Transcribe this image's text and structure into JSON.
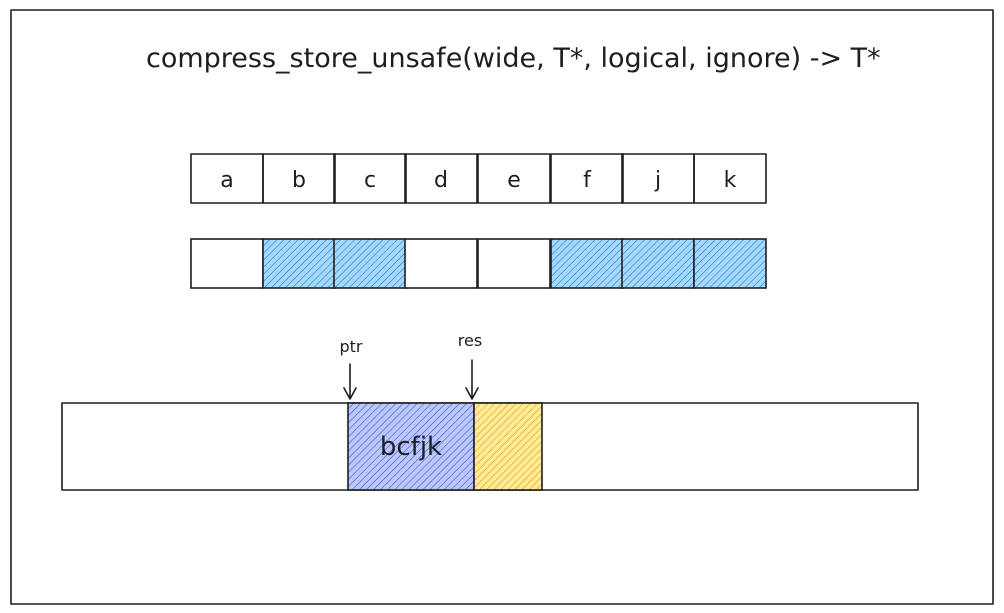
{
  "title": "compress_store_unsafe(wide, T*, logical, ignore) -> T*",
  "values": [
    "a",
    "b",
    "c",
    "d",
    "e",
    "f",
    "j",
    "k"
  ],
  "mask": [
    false,
    true,
    true,
    false,
    false,
    true,
    true,
    true
  ],
  "pointers": {
    "ptr_label": "ptr",
    "res_label": "res"
  },
  "output": {
    "stored_text": "bcfjk"
  },
  "colors": {
    "mask_fill": "#a5d8ff",
    "mask_hatch": "#1971c2",
    "stored_fill": "#bac8ff",
    "stored_hatch": "#364fc7",
    "ignore_fill": "#ffec99",
    "ignore_hatch": "#f08c00",
    "stroke": "#1e1e1e"
  }
}
